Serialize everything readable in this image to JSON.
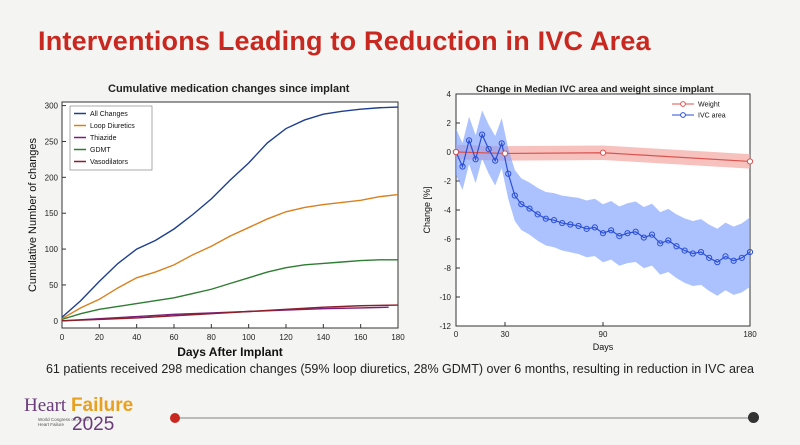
{
  "slide": {
    "title": "Interventions Leading to Reduction in IVC Area",
    "caption": "61 patients received 298 medication changes (59% loop diuretics, 28% GDMT) over 6 months, resulting in reduction in IVC area"
  },
  "logo": {
    "line1_a": "Heart ",
    "line1_b": "Failure",
    "subtitle": "World Congress on Acute Heart Failure",
    "year": "2025"
  },
  "colors": {
    "title_red": "#c8281f",
    "all_changes": "#1f3f8f",
    "loop_diuretics": "#d9801c",
    "thiazide": "#7a1f7a",
    "gdmt": "#2e7d32",
    "vasodilators": "#8b1f2a",
    "ivc": "#2b4fd6",
    "ivc_band": "#7fa2ff",
    "weight": "#d9534f",
    "weight_band": "#f4a7a3"
  },
  "chart_data": [
    {
      "type": "line",
      "title": "Cumulative medication changes since implant",
      "xlabel": "Days After Implant",
      "ylabel": "Cumulative Number of changes",
      "xlim": [
        0,
        180
      ],
      "ylim": [
        -10,
        305
      ],
      "xticks": [
        "0",
        "20",
        "40",
        "60",
        "80",
        "100",
        "120",
        "140",
        "160",
        "180"
      ],
      "yticks": [
        "0",
        "50",
        "100",
        "150",
        "200",
        "250",
        "300"
      ],
      "legend_position": "top-left",
      "series": [
        {
          "name": "All Changes",
          "x": [
            0,
            10,
            20,
            30,
            40,
            50,
            60,
            70,
            80,
            90,
            100,
            110,
            120,
            130,
            140,
            150,
            160,
            170,
            180
          ],
          "values": [
            5,
            28,
            55,
            80,
            100,
            112,
            128,
            148,
            170,
            196,
            220,
            248,
            268,
            280,
            288,
            292,
            295,
            297,
            298
          ]
        },
        {
          "name": "Loop Diuretics",
          "x": [
            0,
            10,
            20,
            30,
            40,
            50,
            60,
            70,
            80,
            90,
            100,
            110,
            120,
            130,
            140,
            150,
            160,
            170,
            180
          ],
          "values": [
            3,
            18,
            30,
            46,
            60,
            68,
            78,
            92,
            104,
            118,
            130,
            142,
            152,
            158,
            162,
            165,
            168,
            173,
            176
          ]
        },
        {
          "name": "Thiazide",
          "x": [
            0,
            20,
            40,
            60,
            80,
            100,
            120,
            140,
            160,
            175
          ],
          "values": [
            0,
            3,
            6,
            9,
            11,
            13,
            15,
            17,
            18,
            19
          ]
        },
        {
          "name": "GDMT",
          "x": [
            0,
            10,
            20,
            30,
            40,
            50,
            60,
            70,
            80,
            90,
            100,
            110,
            120,
            130,
            140,
            150,
            160,
            170,
            180
          ],
          "values": [
            2,
            10,
            16,
            20,
            24,
            28,
            32,
            38,
            44,
            52,
            60,
            68,
            74,
            78,
            80,
            82,
            84,
            85,
            85
          ]
        },
        {
          "name": "Vasodilators",
          "x": [
            0,
            20,
            40,
            60,
            80,
            100,
            120,
            140,
            160,
            180
          ],
          "values": [
            0,
            2,
            4,
            7,
            10,
            13,
            16,
            19,
            21,
            22
          ]
        }
      ]
    },
    {
      "type": "line",
      "title": "Change in Median IVC area and weight since implant",
      "xlabel": "Days",
      "ylabel": "Change [%]",
      "xlim": [
        0,
        180
      ],
      "ylim": [
        -12,
        4
      ],
      "xticks": [
        "0",
        "30",
        "90",
        "180"
      ],
      "yticks": [
        "4",
        "2",
        "0",
        "-2",
        "-4",
        "-6",
        "-8",
        "-10",
        "-12"
      ],
      "legend_position": "top-right",
      "series": [
        {
          "name": "Weight",
          "x": [
            0,
            30,
            90,
            180
          ],
          "values": [
            0,
            -0.1,
            -0.05,
            -0.65
          ]
        },
        {
          "name": "IVC area",
          "x": [
            0,
            4,
            8,
            12,
            16,
            20,
            24,
            28,
            32,
            36,
            40,
            45,
            50,
            55,
            60,
            65,
            70,
            75,
            80,
            85,
            90,
            95,
            100,
            105,
            110,
            115,
            120,
            125,
            130,
            135,
            140,
            145,
            150,
            155,
            160,
            165,
            170,
            175,
            180
          ],
          "values": [
            0,
            -1,
            0.8,
            -0.5,
            1.2,
            0.2,
            -0.6,
            0.6,
            -1.5,
            -3,
            -3.6,
            -3.9,
            -4.3,
            -4.6,
            -4.7,
            -4.9,
            -5,
            -5.1,
            -5.3,
            -5.2,
            -5.6,
            -5.4,
            -5.8,
            -5.6,
            -5.5,
            -5.9,
            -5.7,
            -6.3,
            -6.1,
            -6.5,
            -6.8,
            -7,
            -6.9,
            -7.3,
            -7.6,
            -7.2,
            -7.5,
            -7.3,
            -6.9
          ]
        }
      ]
    }
  ]
}
